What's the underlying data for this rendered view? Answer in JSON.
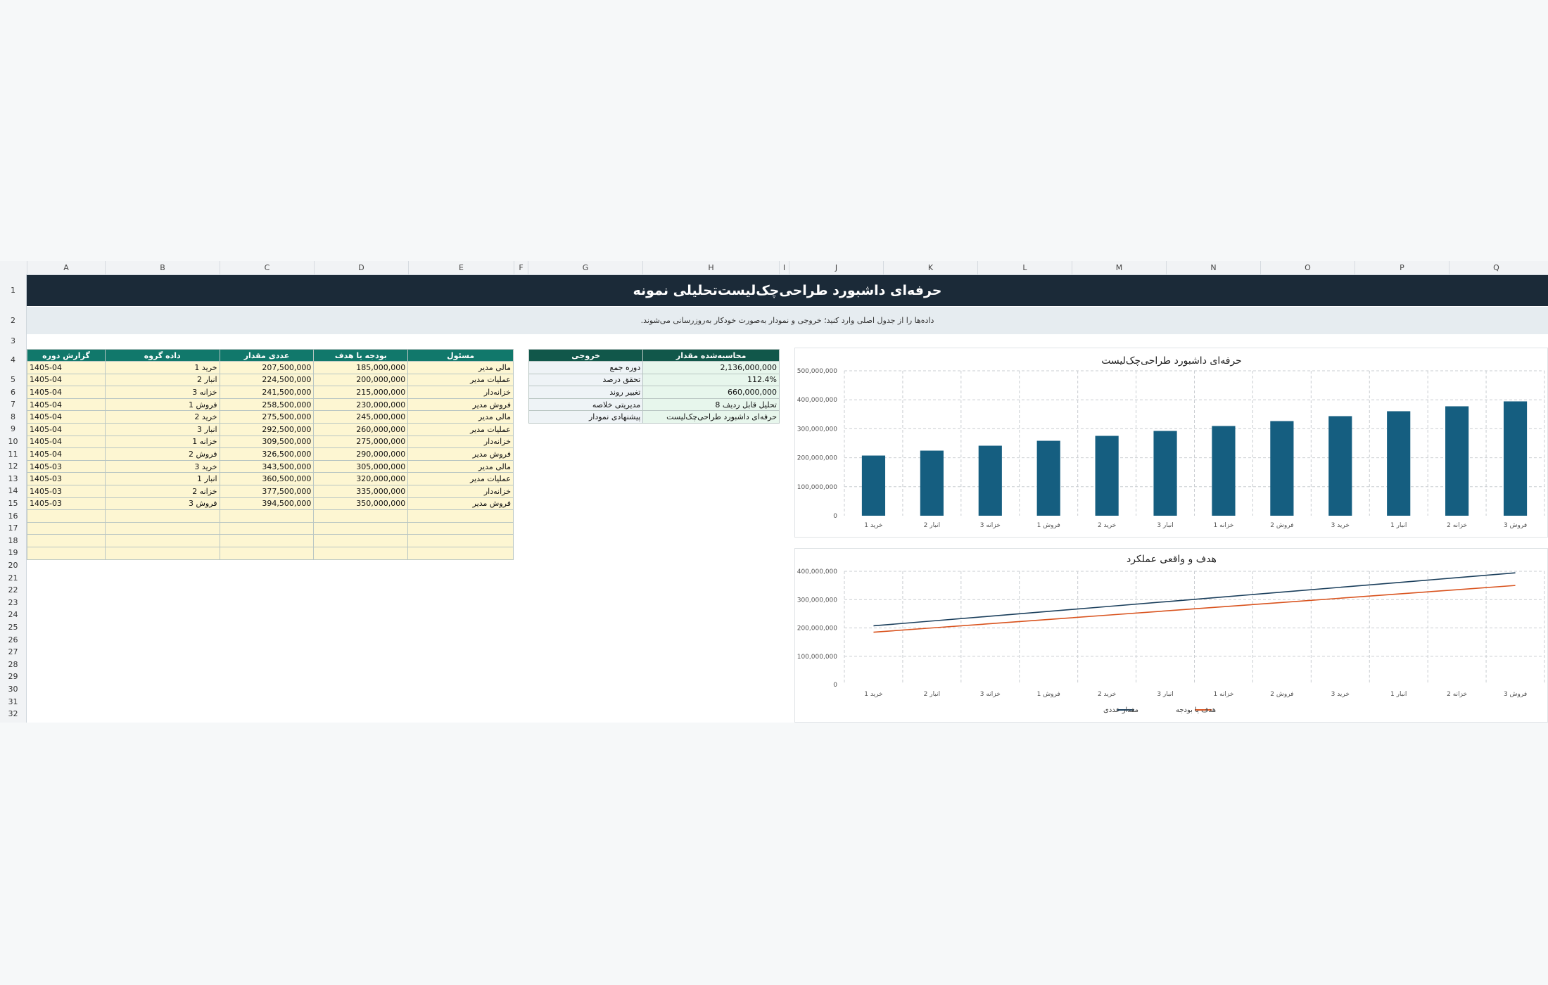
{
  "columns": [
    "A",
    "B",
    "C",
    "D",
    "E",
    "F",
    "G",
    "H",
    "I",
    "J",
    "K",
    "L",
    "M",
    "N",
    "O",
    "P",
    "Q"
  ],
  "rows": [
    "1",
    "2",
    "3",
    "4",
    "5",
    "6",
    "7",
    "8",
    "9",
    "10",
    "11",
    "12",
    "13",
    "14",
    "15",
    "16",
    "17",
    "18",
    "19",
    "20",
    "21",
    "22",
    "23",
    "24",
    "25",
    "26",
    "27",
    "28",
    "29",
    "30",
    "31",
    "32"
  ],
  "title": "حرفه‌ای داشبورد طراحی‌چک‌لیست‌تحلیلی نمونه",
  "subtitle": "داده‌ها را از جدول اصلی وارد کنید؛ خروجی و نمودار به‌صورت خودکار به‌روزرسانی می‌شوند.",
  "main_table": {
    "headers": [
      "گزارش دوره",
      "داده گروه",
      "عددی مقدار",
      "بودجه یا هدف",
      "مسئول"
    ],
    "rows": [
      [
        "1405-04",
        "خرید 1",
        "207,500,000",
        "185,000,000",
        "مالی مدیر"
      ],
      [
        "1405-04",
        "انبار 2",
        "224,500,000",
        "200,000,000",
        "عملیات مدیر"
      ],
      [
        "1405-04",
        "خزانه 3",
        "241,500,000",
        "215,000,000",
        "خزانه‌دار"
      ],
      [
        "1405-04",
        "فروش 1",
        "258,500,000",
        "230,000,000",
        "فروش مدیر"
      ],
      [
        "1405-04",
        "خرید 2",
        "275,500,000",
        "245,000,000",
        "مالی مدیر"
      ],
      [
        "1405-04",
        "انبار 3",
        "292,500,000",
        "260,000,000",
        "عملیات مدیر"
      ],
      [
        "1405-04",
        "خزانه 1",
        "309,500,000",
        "275,000,000",
        "خزانه‌دار"
      ],
      [
        "1405-04",
        "فروش 2",
        "326,500,000",
        "290,000,000",
        "فروش مدیر"
      ],
      [
        "1405-03",
        "خرید 3",
        "343,500,000",
        "305,000,000",
        "مالی مدیر"
      ],
      [
        "1405-03",
        "انبار 1",
        "360,500,000",
        "320,000,000",
        "عملیات مدیر"
      ],
      [
        "1405-03",
        "خزانه 2",
        "377,500,000",
        "335,000,000",
        "خزانه‌دار"
      ],
      [
        "1405-03",
        "فروش 3",
        "394,500,000",
        "350,000,000",
        "فروش مدیر"
      ]
    ]
  },
  "summary_table": {
    "headers": [
      "خروجی",
      "محاسبه‌شده مقدار"
    ],
    "rows": [
      [
        "دوره جمع",
        "2,136,000,000"
      ],
      [
        "تحقق درصد",
        "112.4%"
      ],
      [
        "تغییر روند",
        "660,000,000"
      ],
      [
        "مدیریتی خلاصه",
        "تحلیل قابل ردیف 8"
      ],
      [
        "پیشنهادی نمودار",
        "حرفه‌ای داشبورد طراحی‌چک‌لیست"
      ]
    ]
  },
  "colors": {
    "banner": "#1b2a38",
    "header_green": "#11786b",
    "bar": "#155e80",
    "line_actual": "#1b3f5c",
    "line_target": "#d9531e"
  },
  "chart_data": [
    {
      "type": "bar",
      "title": "حرفه‌ای داشبورد طراحی‌چک‌لیست",
      "categories": [
        "خرید 1",
        "انبار 2",
        "خزانه 3",
        "فروش 1",
        "خرید 2",
        "انبار 3",
        "خزانه 1",
        "فروش 2",
        "خرید 3",
        "انبار 1",
        "خزانه 2",
        "فروش 3"
      ],
      "values": [
        207500000,
        224500000,
        241500000,
        258500000,
        275500000,
        292500000,
        309500000,
        326500000,
        343500000,
        360500000,
        377500000,
        394500000
      ],
      "ylim": [
        0,
        500000000
      ],
      "yticks": [
        "0",
        "100,000,000",
        "200,000,000",
        "300,000,000",
        "400,000,000",
        "500,000,000"
      ],
      "grid": true
    },
    {
      "type": "line",
      "title": "هدف و واقعی عملکرد",
      "categories": [
        "خرید 1",
        "انبار 2",
        "خزانه 3",
        "فروش 1",
        "خرید 2",
        "انبار 3",
        "خزانه 1",
        "فروش 2",
        "خرید 3",
        "انبار 1",
        "خزانه 2",
        "فروش 3"
      ],
      "series": [
        {
          "name": "مقدار عددی",
          "values": [
            207500000,
            224500000,
            241500000,
            258500000,
            275500000,
            292500000,
            309500000,
            326500000,
            343500000,
            360500000,
            377500000,
            394500000
          ]
        },
        {
          "name": "هدف یا بودجه",
          "values": [
            185000000,
            200000000,
            215000000,
            230000000,
            245000000,
            260000000,
            275000000,
            290000000,
            305000000,
            320000000,
            335000000,
            350000000
          ]
        }
      ],
      "ylim": [
        0,
        400000000
      ],
      "yticks": [
        "0",
        "100,000,000",
        "200,000,000",
        "300,000,000",
        "400,000,000"
      ],
      "grid": true,
      "legend": "bottom"
    }
  ]
}
